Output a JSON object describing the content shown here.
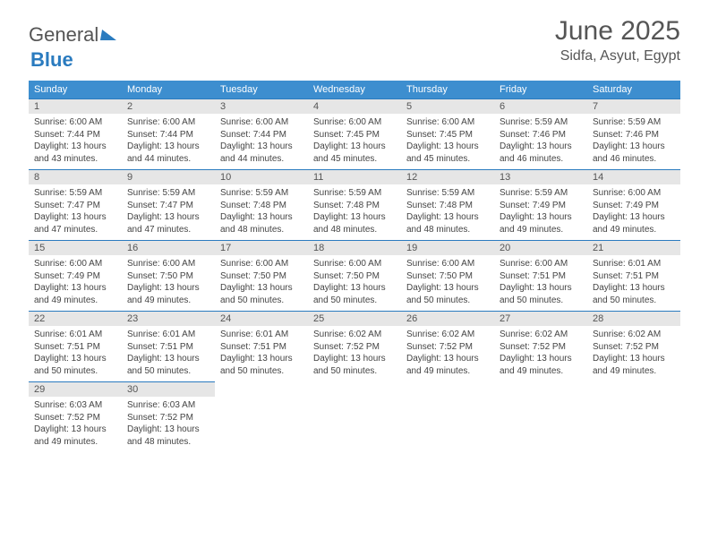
{
  "logo": {
    "part1": "General",
    "part2": "Blue"
  },
  "title": "June 2025",
  "location": "Sidfa, Asyut, Egypt",
  "colors": {
    "header_bg": "#3d8ecf",
    "daynum_bg": "#e6e6e6",
    "row_border": "#2a7bbf",
    "text": "#444"
  },
  "weekdays": [
    "Sunday",
    "Monday",
    "Tuesday",
    "Wednesday",
    "Thursday",
    "Friday",
    "Saturday"
  ],
  "days": [
    {
      "n": "1",
      "sunrise": "6:00 AM",
      "sunset": "7:44 PM",
      "daylight": "13 hours and 43 minutes."
    },
    {
      "n": "2",
      "sunrise": "6:00 AM",
      "sunset": "7:44 PM",
      "daylight": "13 hours and 44 minutes."
    },
    {
      "n": "3",
      "sunrise": "6:00 AM",
      "sunset": "7:44 PM",
      "daylight": "13 hours and 44 minutes."
    },
    {
      "n": "4",
      "sunrise": "6:00 AM",
      "sunset": "7:45 PM",
      "daylight": "13 hours and 45 minutes."
    },
    {
      "n": "5",
      "sunrise": "6:00 AM",
      "sunset": "7:45 PM",
      "daylight": "13 hours and 45 minutes."
    },
    {
      "n": "6",
      "sunrise": "5:59 AM",
      "sunset": "7:46 PM",
      "daylight": "13 hours and 46 minutes."
    },
    {
      "n": "7",
      "sunrise": "5:59 AM",
      "sunset": "7:46 PM",
      "daylight": "13 hours and 46 minutes."
    },
    {
      "n": "8",
      "sunrise": "5:59 AM",
      "sunset": "7:47 PM",
      "daylight": "13 hours and 47 minutes."
    },
    {
      "n": "9",
      "sunrise": "5:59 AM",
      "sunset": "7:47 PM",
      "daylight": "13 hours and 47 minutes."
    },
    {
      "n": "10",
      "sunrise": "5:59 AM",
      "sunset": "7:48 PM",
      "daylight": "13 hours and 48 minutes."
    },
    {
      "n": "11",
      "sunrise": "5:59 AM",
      "sunset": "7:48 PM",
      "daylight": "13 hours and 48 minutes."
    },
    {
      "n": "12",
      "sunrise": "5:59 AM",
      "sunset": "7:48 PM",
      "daylight": "13 hours and 48 minutes."
    },
    {
      "n": "13",
      "sunrise": "5:59 AM",
      "sunset": "7:49 PM",
      "daylight": "13 hours and 49 minutes."
    },
    {
      "n": "14",
      "sunrise": "6:00 AM",
      "sunset": "7:49 PM",
      "daylight": "13 hours and 49 minutes."
    },
    {
      "n": "15",
      "sunrise": "6:00 AM",
      "sunset": "7:49 PM",
      "daylight": "13 hours and 49 minutes."
    },
    {
      "n": "16",
      "sunrise": "6:00 AM",
      "sunset": "7:50 PM",
      "daylight": "13 hours and 49 minutes."
    },
    {
      "n": "17",
      "sunrise": "6:00 AM",
      "sunset": "7:50 PM",
      "daylight": "13 hours and 50 minutes."
    },
    {
      "n": "18",
      "sunrise": "6:00 AM",
      "sunset": "7:50 PM",
      "daylight": "13 hours and 50 minutes."
    },
    {
      "n": "19",
      "sunrise": "6:00 AM",
      "sunset": "7:50 PM",
      "daylight": "13 hours and 50 minutes."
    },
    {
      "n": "20",
      "sunrise": "6:00 AM",
      "sunset": "7:51 PM",
      "daylight": "13 hours and 50 minutes."
    },
    {
      "n": "21",
      "sunrise": "6:01 AM",
      "sunset": "7:51 PM",
      "daylight": "13 hours and 50 minutes."
    },
    {
      "n": "22",
      "sunrise": "6:01 AM",
      "sunset": "7:51 PM",
      "daylight": "13 hours and 50 minutes."
    },
    {
      "n": "23",
      "sunrise": "6:01 AM",
      "sunset": "7:51 PM",
      "daylight": "13 hours and 50 minutes."
    },
    {
      "n": "24",
      "sunrise": "6:01 AM",
      "sunset": "7:51 PM",
      "daylight": "13 hours and 50 minutes."
    },
    {
      "n": "25",
      "sunrise": "6:02 AM",
      "sunset": "7:52 PM",
      "daylight": "13 hours and 50 minutes."
    },
    {
      "n": "26",
      "sunrise": "6:02 AM",
      "sunset": "7:52 PM",
      "daylight": "13 hours and 49 minutes."
    },
    {
      "n": "27",
      "sunrise": "6:02 AM",
      "sunset": "7:52 PM",
      "daylight": "13 hours and 49 minutes."
    },
    {
      "n": "28",
      "sunrise": "6:02 AM",
      "sunset": "7:52 PM",
      "daylight": "13 hours and 49 minutes."
    },
    {
      "n": "29",
      "sunrise": "6:03 AM",
      "sunset": "7:52 PM",
      "daylight": "13 hours and 49 minutes."
    },
    {
      "n": "30",
      "sunrise": "6:03 AM",
      "sunset": "7:52 PM",
      "daylight": "13 hours and 48 minutes."
    }
  ],
  "labels": {
    "sunrise": "Sunrise:",
    "sunset": "Sunset:",
    "daylight": "Daylight:"
  },
  "grid": {
    "cols": 7,
    "trailing_empty": 5
  }
}
